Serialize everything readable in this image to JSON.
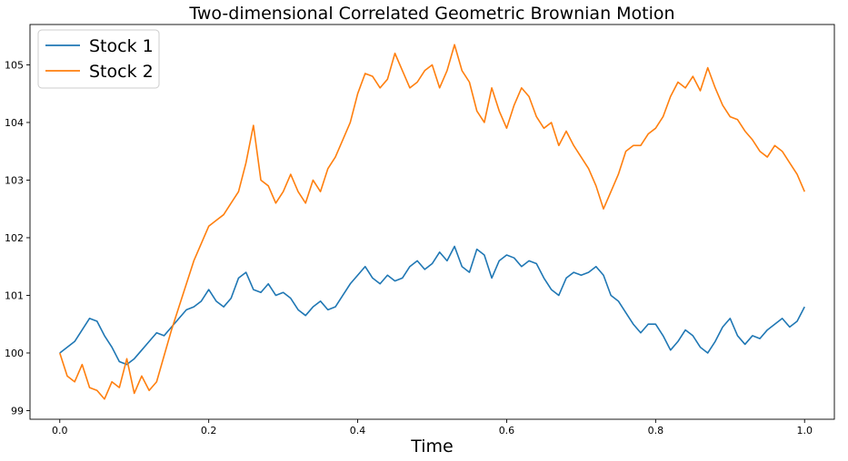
{
  "chart_data": {
    "type": "line",
    "title": "Two-dimensional Correlated Geometric Brownian Motion",
    "xlabel": "Time",
    "ylabel": "",
    "xlim": [
      -0.04,
      1.04
    ],
    "ylim": [
      98.85,
      105.7
    ],
    "xticks": [
      0.0,
      0.2,
      0.4,
      0.6,
      0.8,
      1.0
    ],
    "xtick_labels": [
      "0.0",
      "0.2",
      "0.4",
      "0.6",
      "0.8",
      "1.0"
    ],
    "yticks": [
      99,
      100,
      101,
      102,
      103,
      104,
      105
    ],
    "ytick_labels": [
      "99",
      "100",
      "101",
      "102",
      "103",
      "104",
      "105"
    ],
    "grid": false,
    "legend_position": "top-left",
    "series": [
      {
        "name": "Stock 1",
        "color": "#1f77b4",
        "x": [
          0.0,
          0.01,
          0.02,
          0.03,
          0.04,
          0.05,
          0.06,
          0.07,
          0.08,
          0.09,
          0.1,
          0.11,
          0.12,
          0.13,
          0.14,
          0.15,
          0.16,
          0.17,
          0.18,
          0.19,
          0.2,
          0.21,
          0.22,
          0.23,
          0.24,
          0.25,
          0.26,
          0.27,
          0.28,
          0.29,
          0.3,
          0.31,
          0.32,
          0.33,
          0.34,
          0.35,
          0.36,
          0.37,
          0.38,
          0.39,
          0.4,
          0.41,
          0.42,
          0.43,
          0.44,
          0.45,
          0.46,
          0.47,
          0.48,
          0.49,
          0.5,
          0.51,
          0.52,
          0.53,
          0.54,
          0.55,
          0.56,
          0.57,
          0.58,
          0.59,
          0.6,
          0.61,
          0.62,
          0.63,
          0.64,
          0.65,
          0.66,
          0.67,
          0.68,
          0.69,
          0.7,
          0.71,
          0.72,
          0.73,
          0.74,
          0.75,
          0.76,
          0.77,
          0.78,
          0.79,
          0.8,
          0.81,
          0.82,
          0.83,
          0.84,
          0.85,
          0.86,
          0.87,
          0.88,
          0.89,
          0.9,
          0.91,
          0.92,
          0.93,
          0.94,
          0.95,
          0.96,
          0.97,
          0.98,
          0.99,
          1.0
        ],
        "values": [
          100.0,
          100.1,
          100.2,
          100.4,
          100.6,
          100.55,
          100.3,
          100.1,
          99.85,
          99.8,
          99.9,
          100.05,
          100.2,
          100.35,
          100.3,
          100.45,
          100.6,
          100.75,
          100.8,
          100.9,
          101.1,
          100.9,
          100.8,
          100.95,
          101.3,
          101.4,
          101.1,
          101.05,
          101.2,
          101.0,
          101.05,
          100.95,
          100.75,
          100.65,
          100.8,
          100.9,
          100.75,
          100.8,
          101.0,
          101.2,
          101.35,
          101.5,
          101.3,
          101.2,
          101.35,
          101.25,
          101.3,
          101.5,
          101.6,
          101.45,
          101.55,
          101.75,
          101.6,
          101.85,
          101.5,
          101.4,
          101.8,
          101.7,
          101.3,
          101.6,
          101.7,
          101.65,
          101.5,
          101.6,
          101.55,
          101.3,
          101.1,
          101.0,
          101.3,
          101.4,
          101.35,
          101.4,
          101.5,
          101.35,
          101.0,
          100.9,
          100.7,
          100.5,
          100.35,
          100.5,
          100.5,
          100.3,
          100.05,
          100.2,
          100.4,
          100.3,
          100.1,
          100.0,
          100.2,
          100.45,
          100.6,
          100.3,
          100.15,
          100.3,
          100.25,
          100.4,
          100.5,
          100.6,
          100.45,
          100.55,
          100.8
        ]
      },
      {
        "name": "Stock 2",
        "color": "#ff7f0e",
        "x": [
          0.0,
          0.01,
          0.02,
          0.03,
          0.04,
          0.05,
          0.06,
          0.07,
          0.08,
          0.09,
          0.1,
          0.11,
          0.12,
          0.13,
          0.14,
          0.15,
          0.16,
          0.17,
          0.18,
          0.19,
          0.2,
          0.21,
          0.22,
          0.23,
          0.24,
          0.25,
          0.26,
          0.27,
          0.28,
          0.29,
          0.3,
          0.31,
          0.32,
          0.33,
          0.34,
          0.35,
          0.36,
          0.37,
          0.38,
          0.39,
          0.4,
          0.41,
          0.42,
          0.43,
          0.44,
          0.45,
          0.46,
          0.47,
          0.48,
          0.49,
          0.5,
          0.51,
          0.52,
          0.53,
          0.54,
          0.55,
          0.56,
          0.57,
          0.58,
          0.59,
          0.6,
          0.61,
          0.62,
          0.63,
          0.64,
          0.65,
          0.66,
          0.67,
          0.68,
          0.69,
          0.7,
          0.71,
          0.72,
          0.73,
          0.74,
          0.75,
          0.76,
          0.77,
          0.78,
          0.79,
          0.8,
          0.81,
          0.82,
          0.83,
          0.84,
          0.85,
          0.86,
          0.87,
          0.88,
          0.89,
          0.9,
          0.91,
          0.92,
          0.93,
          0.94,
          0.95,
          0.96,
          0.97,
          0.98,
          0.99,
          1.0
        ],
        "values": [
          100.0,
          99.6,
          99.5,
          99.8,
          99.4,
          99.35,
          99.2,
          99.5,
          99.4,
          99.9,
          99.3,
          99.6,
          99.35,
          99.5,
          99.95,
          100.4,
          100.8,
          101.2,
          101.6,
          101.9,
          102.2,
          102.3,
          102.4,
          102.6,
          102.8,
          103.3,
          103.95,
          103.0,
          102.9,
          102.6,
          102.8,
          103.1,
          102.8,
          102.6,
          103.0,
          102.8,
          103.2,
          103.4,
          103.7,
          104.0,
          104.5,
          104.85,
          104.8,
          104.6,
          104.75,
          105.2,
          104.9,
          104.6,
          104.7,
          104.9,
          105.0,
          104.6,
          104.9,
          105.35,
          104.9,
          104.7,
          104.2,
          104.0,
          104.6,
          104.2,
          103.9,
          104.3,
          104.6,
          104.45,
          104.1,
          103.9,
          104.0,
          103.6,
          103.85,
          103.6,
          103.4,
          103.2,
          102.9,
          102.5,
          102.8,
          103.1,
          103.5,
          103.6,
          103.6,
          103.8,
          103.9,
          104.1,
          104.45,
          104.7,
          104.6,
          104.8,
          104.55,
          104.95,
          104.6,
          104.3,
          104.1,
          104.05,
          103.85,
          103.7,
          103.5,
          103.4,
          103.6,
          103.5,
          103.3,
          103.1,
          102.8
        ]
      }
    ]
  }
}
